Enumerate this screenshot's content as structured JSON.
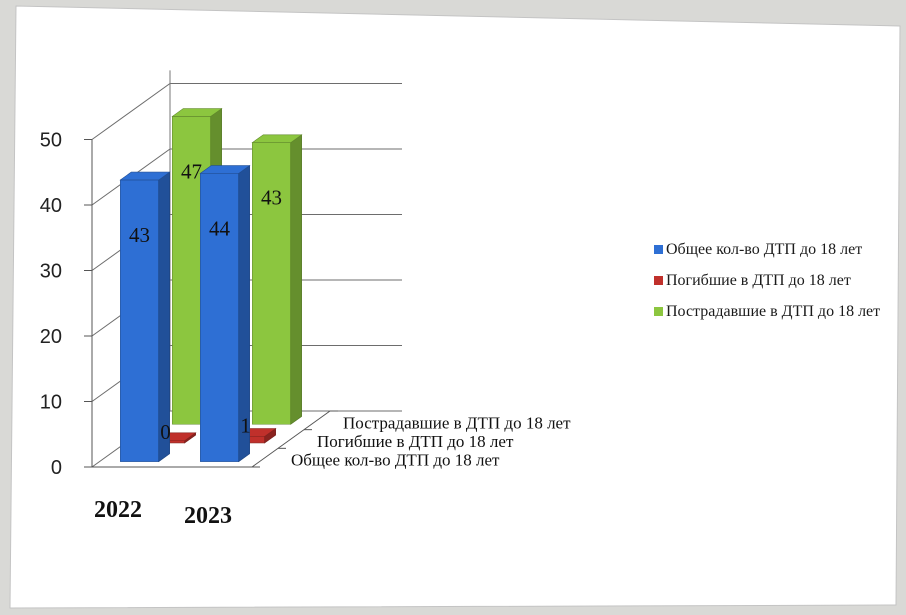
{
  "chart_data": {
    "type": "bar",
    "categories": [
      "2022",
      "2023"
    ],
    "series": [
      {
        "name": "Общее кол-во ДТП до 18 лет",
        "values": [
          43,
          44
        ],
        "color": "#2e6fd4"
      },
      {
        "name": "Погибшие в ДТП до 18 лет",
        "values": [
          0,
          1
        ],
        "color": "#c0302b"
      },
      {
        "name": "Пострадавшие в ДТП до 18 лет",
        "values": [
          47,
          43
        ],
        "color": "#8cc63f"
      }
    ],
    "data_labels": [
      [
        "43",
        "44"
      ],
      [
        "0",
        "1"
      ],
      [
        "47",
        "43"
      ]
    ],
    "y_ticks": [
      "0",
      "10",
      "20",
      "30",
      "40",
      "50"
    ],
    "ylim": [
      0,
      50
    ],
    "depth_labels": [
      "Пострадавшие в ДТП до 18 лет",
      "Погибшие в ДТП до 18 лет",
      "Общее кол-во ДТП до 18 лет"
    ],
    "legend": [
      "Общее кол-во ДТП до 18 лет",
      "Погибшие в ДТП до 18 лет",
      "Пострадавшие в ДТП до 18 лет"
    ],
    "legend_position": "right",
    "style": "3d-column",
    "grid": true
  }
}
